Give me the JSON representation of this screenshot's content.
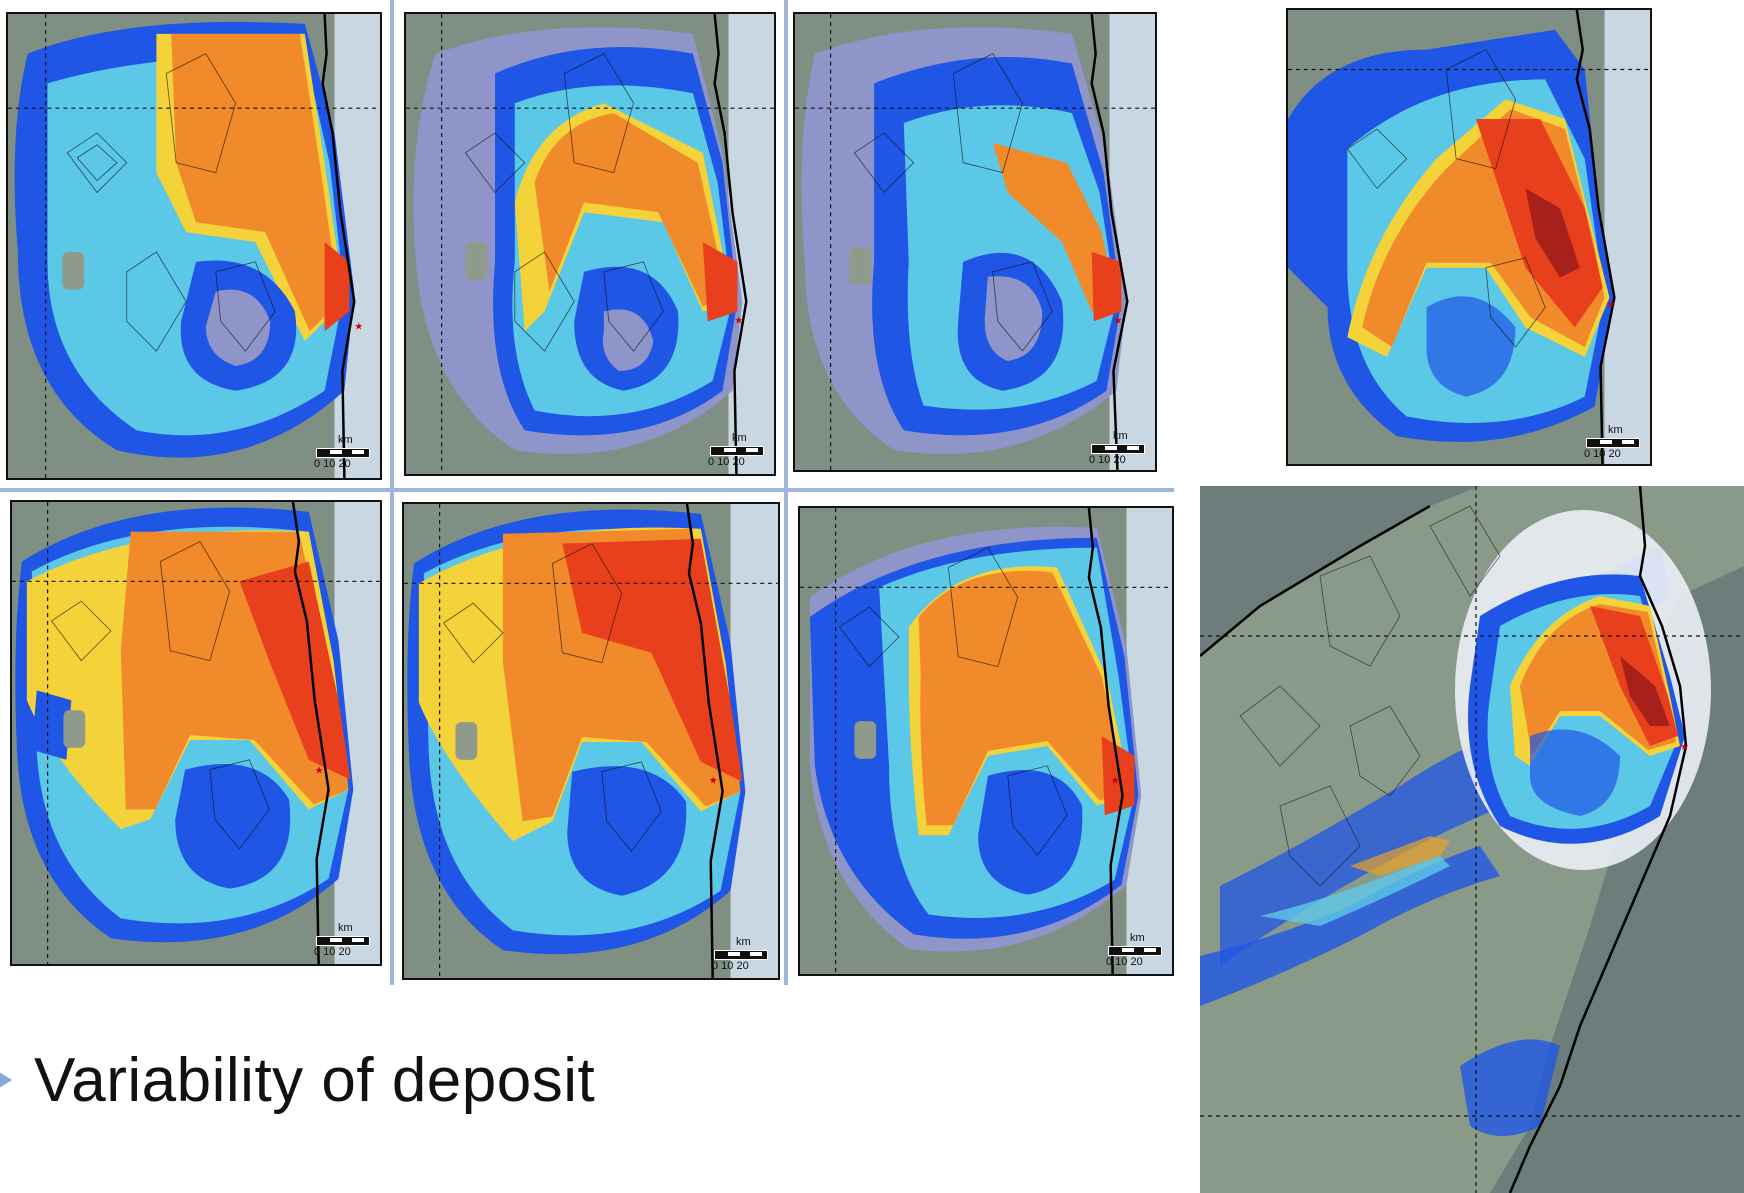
{
  "caption": {
    "text": "Variability of deposit"
  },
  "scale_bar": {
    "unit": "km",
    "ticks": "0  10  20"
  },
  "panels": [
    {
      "id": "row1-col1"
    },
    {
      "id": "row1-col2"
    },
    {
      "id": "row1-col3"
    },
    {
      "id": "row1-reference"
    },
    {
      "id": "row2-col1"
    },
    {
      "id": "row2-col2"
    },
    {
      "id": "row2-col3"
    }
  ],
  "colors": {
    "deposit_high": "#e8401c",
    "deposit_mid_high": "#f08a2a",
    "deposit_mid": "#f4d23a",
    "deposit_low_mid": "#5cc8e8",
    "deposit_low": "#1f56e6",
    "deposit_very_low": "#8f95c8",
    "terrain": "#7f8f84",
    "sea": "#c9d7e3",
    "separator": "#9fb6d9"
  }
}
